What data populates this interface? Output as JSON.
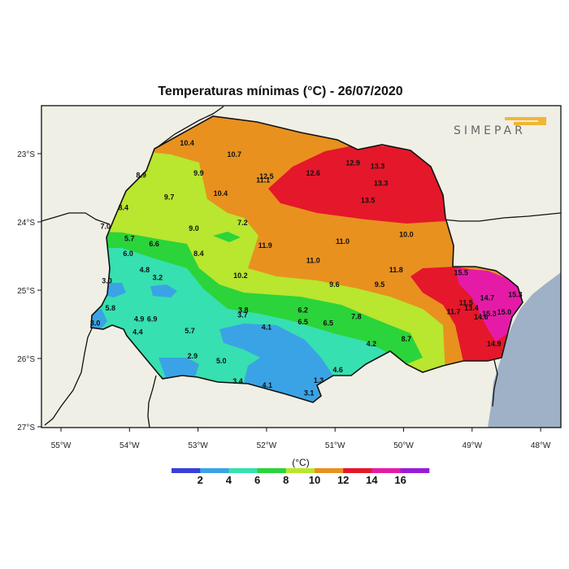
{
  "title": "Temperaturas mínimas (°C) - 26/07/2020",
  "logo_text": "SIMEPAR",
  "colorbar": {
    "unit": "(°C)",
    "ticks": [
      "2",
      "4",
      "6",
      "8",
      "10",
      "12",
      "14",
      "16"
    ],
    "colors": [
      "#3a3fd9",
      "#3aa3e6",
      "#36e0b0",
      "#2bd43a",
      "#b9e62e",
      "#e8911f",
      "#e5172a",
      "#e51ba8",
      "#9a1bd9"
    ]
  },
  "axes": {
    "lon_labels": [
      "55°W",
      "54°W",
      "53°W",
      "52°W",
      "51°W",
      "50°W",
      "49°W",
      "48°W"
    ],
    "lat_labels": [
      "23°S",
      "24°S",
      "25°S",
      "26°S",
      "27°S"
    ]
  },
  "colors": {
    "background": "#f0efe5",
    "ocean": "#9fb1c6",
    "border": "#111111"
  },
  "station_values": [
    {
      "v": "10.4",
      "lon": -53.16,
      "lat": -22.88
    },
    {
      "v": "10.7",
      "lon": -52.47,
      "lat": -23.05
    },
    {
      "v": "12.5",
      "lon": -52.0,
      "lat": -23.37
    },
    {
      "v": "11.1",
      "lon": -52.05,
      "lat": -23.42
    },
    {
      "v": "12.6",
      "lon": -51.32,
      "lat": -23.32
    },
    {
      "v": "12.9",
      "lon": -50.74,
      "lat": -23.17
    },
    {
      "v": "13.3",
      "lon": -50.38,
      "lat": -23.22
    },
    {
      "v": "13.3",
      "lon": -50.33,
      "lat": -23.47
    },
    {
      "v": "13.5",
      "lon": -50.52,
      "lat": -23.72
    },
    {
      "v": "8.9",
      "lon": -53.83,
      "lat": -23.35
    },
    {
      "v": "9.9",
      "lon": -52.99,
      "lat": -23.32
    },
    {
      "v": "10.4",
      "lon": -52.67,
      "lat": -23.62
    },
    {
      "v": "9.7",
      "lon": -53.42,
      "lat": -23.67
    },
    {
      "v": "8.4",
      "lon": -54.09,
      "lat": -23.83
    },
    {
      "v": "7.2",
      "lon": -52.35,
      "lat": -24.05
    },
    {
      "v": "7.0",
      "lon": -54.35,
      "lat": -24.1
    },
    {
      "v": "9.0",
      "lon": -53.06,
      "lat": -24.13
    },
    {
      "v": "5.7",
      "lon": -54.0,
      "lat": -24.28
    },
    {
      "v": "6.6",
      "lon": -53.64,
      "lat": -24.36
    },
    {
      "v": "11.9",
      "lon": -52.02,
      "lat": -24.38
    },
    {
      "v": "11.0",
      "lon": -50.89,
      "lat": -24.32
    },
    {
      "v": "10.0",
      "lon": -49.96,
      "lat": -24.22
    },
    {
      "v": "8.4",
      "lon": -52.99,
      "lat": -24.5
    },
    {
      "v": "11.0",
      "lon": -51.32,
      "lat": -24.6
    },
    {
      "v": "6.0",
      "lon": -54.02,
      "lat": -24.5
    },
    {
      "v": "4.8",
      "lon": -53.78,
      "lat": -24.74
    },
    {
      "v": "3.2",
      "lon": -53.59,
      "lat": -24.85
    },
    {
      "v": "10.2",
      "lon": -52.38,
      "lat": -24.82
    },
    {
      "v": "11.8",
      "lon": -50.11,
      "lat": -24.74
    },
    {
      "v": "15.5",
      "lon": -49.16,
      "lat": -24.78
    },
    {
      "v": "3.0",
      "lon": -54.33,
      "lat": -24.9
    },
    {
      "v": "9.6",
      "lon": -51.01,
      "lat": -24.95
    },
    {
      "v": "9.5",
      "lon": -50.35,
      "lat": -24.95
    },
    {
      "v": "11.5",
      "lon": -49.09,
      "lat": -25.22
    },
    {
      "v": "14.7",
      "lon": -48.78,
      "lat": -25.15
    },
    {
      "v": "15.3",
      "lon": -48.37,
      "lat": -25.1
    },
    {
      "v": "13.4",
      "lon": -49.01,
      "lat": -25.3
    },
    {
      "v": "11.7",
      "lon": -49.27,
      "lat": -25.35
    },
    {
      "v": "15.3",
      "lon": -48.75,
      "lat": -25.38
    },
    {
      "v": "14.6",
      "lon": -48.87,
      "lat": -25.43
    },
    {
      "v": "15.0",
      "lon": -48.53,
      "lat": -25.36
    },
    {
      "v": "14.9",
      "lon": -48.68,
      "lat": -25.82
    },
    {
      "v": "5.8",
      "lon": -54.28,
      "lat": -25.3
    },
    {
      "v": "3.8",
      "lon": -52.34,
      "lat": -25.33
    },
    {
      "v": "3.7",
      "lon": -52.35,
      "lat": -25.4
    },
    {
      "v": "6.2",
      "lon": -51.47,
      "lat": -25.33
    },
    {
      "v": "7.8",
      "lon": -50.69,
      "lat": -25.42
    },
    {
      "v": "4.9",
      "lon": -53.86,
      "lat": -25.46
    },
    {
      "v": "6.9",
      "lon": -53.67,
      "lat": -25.46
    },
    {
      "v": "3.0",
      "lon": -54.5,
      "lat": -25.52
    },
    {
      "v": "6.5",
      "lon": -51.47,
      "lat": -25.5
    },
    {
      "v": "6.5",
      "lon": -51.1,
      "lat": -25.52
    },
    {
      "v": "4.1",
      "lon": -52.0,
      "lat": -25.58
    },
    {
      "v": "4.4",
      "lon": -53.88,
      "lat": -25.65
    },
    {
      "v": "5.7",
      "lon": -53.12,
      "lat": -25.63
    },
    {
      "v": "8.7",
      "lon": -49.96,
      "lat": -25.75
    },
    {
      "v": "4.2",
      "lon": -50.47,
      "lat": -25.82
    },
    {
      "v": "2.9",
      "lon": -53.08,
      "lat": -26.0
    },
    {
      "v": "5.0",
      "lon": -52.66,
      "lat": -26.07
    },
    {
      "v": "4.6",
      "lon": -50.96,
      "lat": -26.2
    },
    {
      "v": "3.4",
      "lon": -52.42,
      "lat": -26.37
    },
    {
      "v": "1.3",
      "lon": -51.24,
      "lat": -26.36
    },
    {
      "v": "4.1",
      "lon": -51.99,
      "lat": -26.43
    },
    {
      "v": "3.1",
      "lon": -51.38,
      "lat": -26.54
    }
  ]
}
